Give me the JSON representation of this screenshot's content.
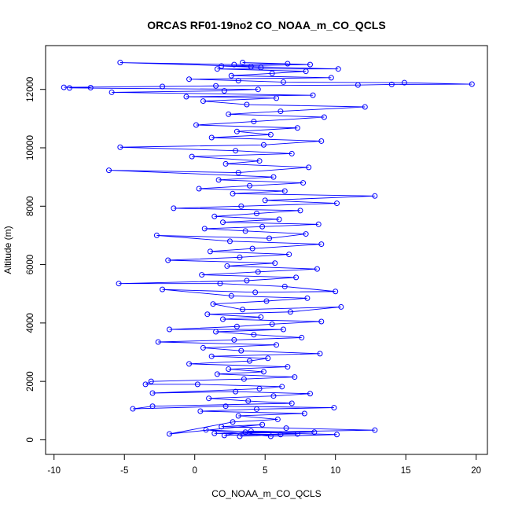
{
  "chart_data": {
    "type": "scatter",
    "title": "ORCAS RF01-19no2 CO_NOAA_m_CO_QCLS",
    "xlabel": "CO_NOAA_m_CO_QCLS",
    "ylabel": "Altitude (m)",
    "xlim": [
      -10.6,
      20.8
    ],
    "ylim": [
      -500,
      13500
    ],
    "xticks": [
      -10,
      -5,
      0,
      5,
      10,
      15,
      20
    ],
    "yticks": [
      0,
      2000,
      4000,
      6000,
      8000,
      10000,
      12000
    ],
    "grid": false,
    "legend": "none",
    "series": [
      {
        "color": "#0000ff",
        "marker": "open-circle",
        "line": true,
        "points": [
          [
            3.2,
            120
          ],
          [
            6.1,
            180
          ],
          [
            1.4,
            220
          ],
          [
            8.5,
            260
          ],
          [
            4.0,
            300
          ],
          [
            2.1,
            150
          ],
          [
            7.3,
            200
          ],
          [
            0.8,
            340
          ],
          [
            5.4,
            120
          ],
          [
            10.1,
            180
          ],
          [
            3.6,
            260
          ],
          [
            12.8,
            330
          ],
          [
            6.5,
            400
          ],
          [
            1.9,
            450
          ],
          [
            4.8,
            520
          ],
          [
            -1.8,
            200
          ],
          [
            2.7,
            610
          ],
          [
            5.9,
            700
          ],
          [
            3.1,
            820
          ],
          [
            7.8,
            900
          ],
          [
            0.4,
            980
          ],
          [
            4.4,
            1050
          ],
          [
            9.9,
            1100
          ],
          [
            2.2,
            1150
          ],
          [
            -4.4,
            1060
          ],
          [
            -3.0,
            1150
          ],
          [
            6.9,
            1250
          ],
          [
            3.8,
            1330
          ],
          [
            1.0,
            1420
          ],
          [
            5.6,
            1500
          ],
          [
            8.2,
            1580
          ],
          [
            2.9,
            1650
          ],
          [
            -3.0,
            1600
          ],
          [
            4.6,
            1750
          ],
          [
            6.2,
            1820
          ],
          [
            0.2,
            1900
          ],
          [
            -3.5,
            1900
          ],
          [
            -3.1,
            2000
          ],
          [
            3.5,
            2080
          ],
          [
            7.1,
            2150
          ],
          [
            1.6,
            2250
          ],
          [
            4.9,
            2330
          ],
          [
            2.4,
            2420
          ],
          [
            6.6,
            2500
          ],
          [
            -0.4,
            2600
          ],
          [
            3.9,
            2700
          ],
          [
            5.2,
            2790
          ],
          [
            1.2,
            2860
          ],
          [
            8.9,
            2950
          ],
          [
            3.3,
            3050
          ],
          [
            0.6,
            3150
          ],
          [
            5.8,
            3250
          ],
          [
            -2.6,
            3350
          ],
          [
            2.8,
            3420
          ],
          [
            7.6,
            3500
          ],
          [
            4.2,
            3600
          ],
          [
            1.5,
            3700
          ],
          [
            6.3,
            3780
          ],
          [
            -1.8,
            3780
          ],
          [
            3.0,
            3880
          ],
          [
            5.5,
            3960
          ],
          [
            9.0,
            4050
          ],
          [
            2.0,
            4130
          ],
          [
            4.7,
            4200
          ],
          [
            0.9,
            4300
          ],
          [
            6.8,
            4380
          ],
          [
            10.4,
            4550
          ],
          [
            3.4,
            4460
          ],
          [
            1.3,
            4650
          ],
          [
            5.1,
            4750
          ],
          [
            8.0,
            4850
          ],
          [
            2.6,
            4930
          ],
          [
            -2.3,
            5150
          ],
          [
            4.3,
            5050
          ],
          [
            10.0,
            5080
          ],
          [
            6.4,
            5250
          ],
          [
            1.8,
            5350
          ],
          [
            -5.4,
            5350
          ],
          [
            3.7,
            5450
          ],
          [
            7.2,
            5560
          ],
          [
            0.5,
            5650
          ],
          [
            4.5,
            5750
          ],
          [
            8.7,
            5850
          ],
          [
            2.3,
            5950
          ],
          [
            5.7,
            6050
          ],
          [
            -1.9,
            6150
          ],
          [
            3.2,
            6250
          ],
          [
            6.7,
            6350
          ],
          [
            1.1,
            6450
          ],
          [
            4.1,
            6550
          ],
          [
            9.0,
            6700
          ],
          [
            2.5,
            6800
          ],
          [
            -2.7,
            7000
          ],
          [
            5.3,
            6900
          ],
          [
            7.9,
            7050
          ],
          [
            3.6,
            7150
          ],
          [
            0.7,
            7230
          ],
          [
            4.8,
            7300
          ],
          [
            8.8,
            7380
          ],
          [
            2.0,
            7450
          ],
          [
            6.0,
            7550
          ],
          [
            1.4,
            7650
          ],
          [
            4.4,
            7750
          ],
          [
            7.5,
            7850
          ],
          [
            -1.5,
            7930
          ],
          [
            3.3,
            8000
          ],
          [
            10.1,
            8100
          ],
          [
            5.0,
            8200
          ],
          [
            12.8,
            8350
          ],
          [
            2.7,
            8430
          ],
          [
            6.4,
            8520
          ],
          [
            0.3,
            8600
          ],
          [
            3.9,
            8700
          ],
          [
            7.7,
            8800
          ],
          [
            1.7,
            8900
          ],
          [
            5.6,
            9000
          ],
          [
            -6.1,
            9230
          ],
          [
            3.1,
            9150
          ],
          [
            8.1,
            9330
          ],
          [
            2.2,
            9450
          ],
          [
            4.6,
            9550
          ],
          [
            -0.2,
            9700
          ],
          [
            6.9,
            9800
          ],
          [
            2.9,
            9900
          ],
          [
            -5.3,
            10020
          ],
          [
            4.9,
            10100
          ],
          [
            9.0,
            10230
          ],
          [
            1.2,
            10350
          ],
          [
            5.4,
            10450
          ],
          [
            3.0,
            10560
          ],
          [
            7.3,
            10680
          ],
          [
            0.1,
            10780
          ],
          [
            4.2,
            10900
          ],
          [
            9.2,
            11050
          ],
          [
            2.4,
            11150
          ],
          [
            6.1,
            11250
          ],
          [
            12.1,
            11400
          ],
          [
            3.7,
            11480
          ],
          [
            0.6,
            11600
          ],
          [
            5.8,
            11700
          ],
          [
            -0.6,
            11750
          ],
          [
            8.4,
            11800
          ],
          [
            -5.9,
            11900
          ],
          [
            2.1,
            11950
          ],
          [
            4.5,
            12000
          ],
          [
            -8.9,
            12050
          ],
          [
            -7.4,
            12060
          ],
          [
            -9.3,
            12070
          ],
          [
            -2.3,
            12100
          ],
          [
            1.5,
            12120
          ],
          [
            11.6,
            12150
          ],
          [
            14.0,
            12170
          ],
          [
            19.7,
            12180
          ],
          [
            14.9,
            12230
          ],
          [
            6.3,
            12250
          ],
          [
            3.1,
            12300
          ],
          [
            -0.4,
            12350
          ],
          [
            9.7,
            12400
          ],
          [
            2.6,
            12470
          ],
          [
            5.5,
            12550
          ],
          [
            7.9,
            12620
          ],
          [
            1.6,
            12700
          ],
          [
            10.2,
            12700
          ],
          [
            4.0,
            12780
          ],
          [
            -5.3,
            12920
          ],
          [
            2.8,
            12850
          ],
          [
            6.6,
            12880
          ],
          [
            3.4,
            12920
          ],
          [
            8.2,
            12850
          ],
          [
            1.9,
            12800
          ],
          [
            4.7,
            12750
          ]
        ]
      }
    ]
  }
}
